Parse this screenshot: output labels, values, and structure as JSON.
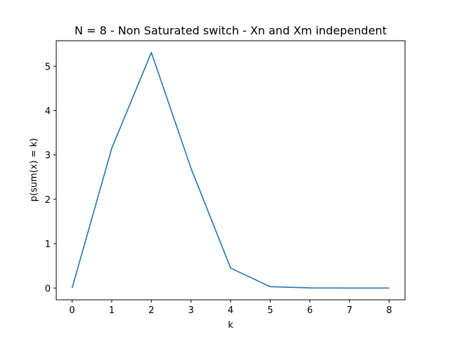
{
  "chart_data": {
    "type": "line",
    "title": "N = 8 - Non Saturated switch - Xn and Xm independent",
    "xlabel": "k",
    "ylabel": "p(sum(x) = k)",
    "x": [
      0,
      1,
      2,
      3,
      4,
      5,
      6,
      7,
      8
    ],
    "series": [
      {
        "values": [
          0.0,
          3.15,
          5.31,
          2.7,
          0.45,
          0.03,
          0.003,
          0.0,
          0.0
        ]
      }
    ],
    "xlim": [
      -0.4,
      8.4
    ],
    "ylim": [
      -0.265,
      5.575
    ],
    "xticks": [
      0,
      1,
      2,
      3,
      4,
      5,
      6,
      7,
      8
    ],
    "yticks": [
      0,
      1,
      2,
      3,
      4,
      5
    ],
    "grid": false,
    "legend": "none",
    "line_color": "#1f77b4"
  }
}
